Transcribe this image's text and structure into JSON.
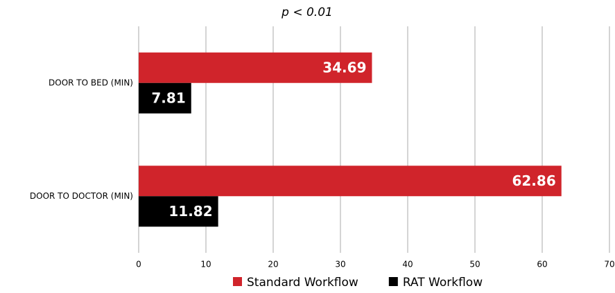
{
  "chart_data": {
    "type": "hbar",
    "title": "p < 0.01",
    "categories": [
      "DOOR TO BED (MIN)",
      "DOOR TO DOCTOR (MIN)"
    ],
    "series": [
      {
        "name": "Standard Workflow",
        "color": "#d0242b",
        "values": [
          34.69,
          62.86
        ]
      },
      {
        "name": "RAT Workflow",
        "color": "#000000",
        "values": [
          7.81,
          11.82
        ]
      }
    ],
    "xlim": [
      0,
      70
    ],
    "xticks": [
      0,
      10,
      20,
      30,
      40,
      50,
      60,
      70
    ],
    "grid": true,
    "legend": "bottom"
  }
}
